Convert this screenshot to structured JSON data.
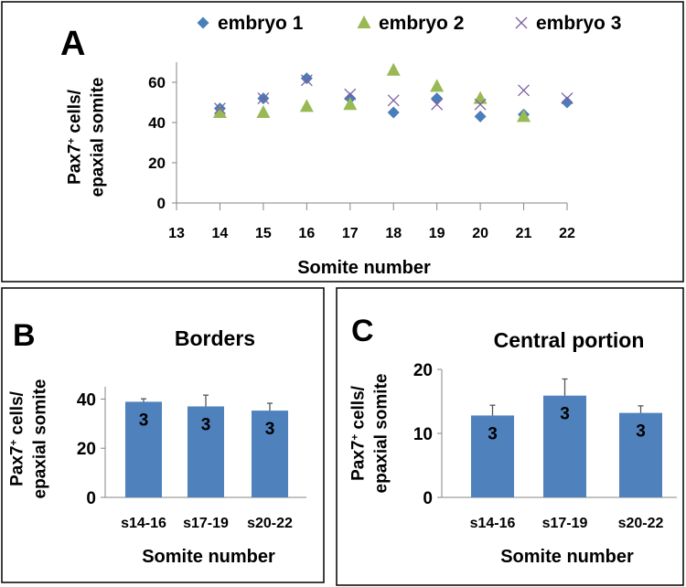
{
  "colors": {
    "embryo1": "#4a7ebb",
    "embryo2": "#98b954",
    "embryo3": "#7d5fa0",
    "bar": "#4f81bd",
    "axis": "#868686"
  },
  "chart_data": [
    {
      "panel": "A",
      "type": "scatter",
      "title": "",
      "xlabel": "Somite number",
      "ylabel_line1": "Pax7",
      "ylabel_sup": "+",
      "ylabel_line1_rest": " cells/",
      "ylabel_line2": "epaxial somite",
      "xlim": [
        13,
        22
      ],
      "ylim": [
        0,
        70
      ],
      "xticks": [
        13,
        14,
        15,
        16,
        17,
        18,
        19,
        20,
        21,
        22
      ],
      "yticks": [
        0,
        20,
        40,
        60
      ],
      "legend_position": "top",
      "series": [
        {
          "name": "embryo 1",
          "marker": "diamond",
          "x": [
            14,
            15,
            16,
            17,
            18,
            19,
            20,
            21,
            22
          ],
          "y": [
            47,
            52,
            62,
            52,
            45,
            52,
            43,
            44,
            50
          ]
        },
        {
          "name": "embryo 2",
          "marker": "triangle",
          "x": [
            14,
            15,
            16,
            17,
            18,
            19,
            20,
            21
          ],
          "y": [
            45,
            45,
            48,
            49,
            66,
            58,
            52,
            43
          ]
        },
        {
          "name": "embryo 3",
          "marker": "x",
          "x": [
            14,
            15,
            16,
            17,
            18,
            19,
            20,
            21,
            22
          ],
          "y": [
            47,
            52,
            61,
            54,
            51,
            49,
            49,
            56,
            52
          ]
        }
      ]
    },
    {
      "panel": "B",
      "type": "bar",
      "title": "Borders",
      "xlabel": "Somite number",
      "ylabel_line1": "Pax7",
      "ylabel_sup": "+",
      "ylabel_line1_rest": " cells/",
      "ylabel_line2": "epaxial somite",
      "categories": [
        "s14-16",
        "s17-19",
        "s20-22"
      ],
      "values": [
        38.9,
        37.0,
        35.3
      ],
      "errors": [
        1.2,
        4.6,
        3.0
      ],
      "n_labels": [
        "3",
        "3",
        "3"
      ],
      "ylim": [
        0,
        45
      ],
      "yticks": [
        0,
        20,
        40
      ]
    },
    {
      "panel": "C",
      "type": "bar",
      "title": "Central portion",
      "xlabel": "Somite number",
      "ylabel_line1": "Pax7",
      "ylabel_sup": "+",
      "ylabel_line1_rest": " cells/",
      "ylabel_line2": "epaxial somite",
      "categories": [
        "s14-16",
        "s17-19",
        "s20-22"
      ],
      "values": [
        12.8,
        15.9,
        13.2
      ],
      "errors": [
        1.6,
        2.6,
        1.1
      ],
      "n_labels": [
        "3",
        "3",
        "3"
      ],
      "ylim": [
        0,
        20
      ],
      "yticks": [
        0,
        10,
        20
      ]
    }
  ]
}
